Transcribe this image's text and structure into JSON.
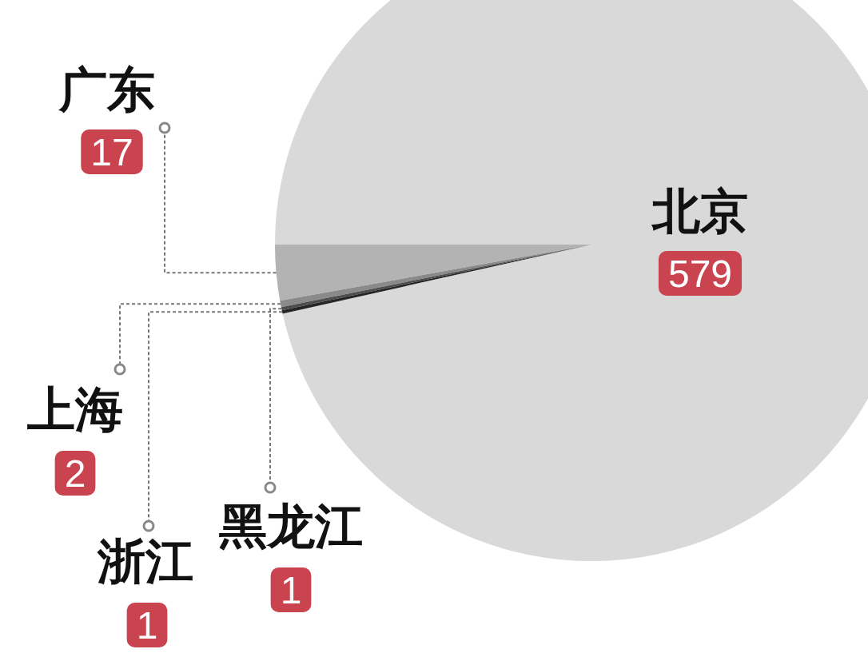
{
  "chart_data": {
    "type": "pie",
    "categories": [
      "北京",
      "广东",
      "上海",
      "黑龙江",
      "浙江"
    ],
    "values": [
      579,
      17,
      2,
      1,
      1
    ],
    "colors": [
      "#d9d9d9",
      "#b3b3b3",
      "#8a8a8a",
      "#4d4d4d",
      "#262626"
    ],
    "data_labels": true
  }
}
